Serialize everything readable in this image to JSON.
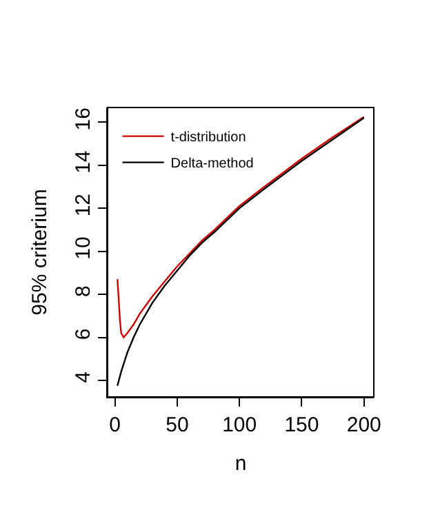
{
  "chart_data": {
    "type": "line",
    "xlabel": "n",
    "ylabel": "95% criterium",
    "xlim": [
      -5.9,
      207.9
    ],
    "xticks": [
      0,
      50,
      100,
      150,
      200
    ],
    "ylim": [
      3.23,
      16.68
    ],
    "yticks": [
      4,
      6,
      8,
      10,
      12,
      14,
      16
    ],
    "grid": false,
    "legend": "top left",
    "marker": "none",
    "line_style": "solid",
    "series": [
      {
        "name": "t-distribution",
        "color": "#cc0000",
        "x": [
          2,
          3,
          4,
          5,
          7,
          10,
          15,
          20,
          30,
          40,
          50,
          60,
          70,
          80,
          100,
          120,
          150,
          175,
          200
        ],
        "values": [
          8.7,
          7.8,
          6.8,
          6.2,
          6.0,
          6.2,
          6.6,
          7.1,
          7.9,
          8.6,
          9.3,
          9.9,
          10.5,
          11.0,
          12.1,
          13.0,
          14.3,
          15.3,
          16.25
        ]
      },
      {
        "name": "Delta-method",
        "color": "#000000",
        "x": [
          2,
          5,
          10,
          15,
          20,
          30,
          40,
          50,
          60,
          70,
          80,
          100,
          120,
          150,
          175,
          200
        ],
        "values": [
          3.75,
          4.4,
          5.3,
          6.0,
          6.6,
          7.6,
          8.4,
          9.1,
          9.8,
          10.4,
          10.9,
          12.0,
          12.9,
          14.2,
          15.2,
          16.2
        ]
      }
    ]
  }
}
